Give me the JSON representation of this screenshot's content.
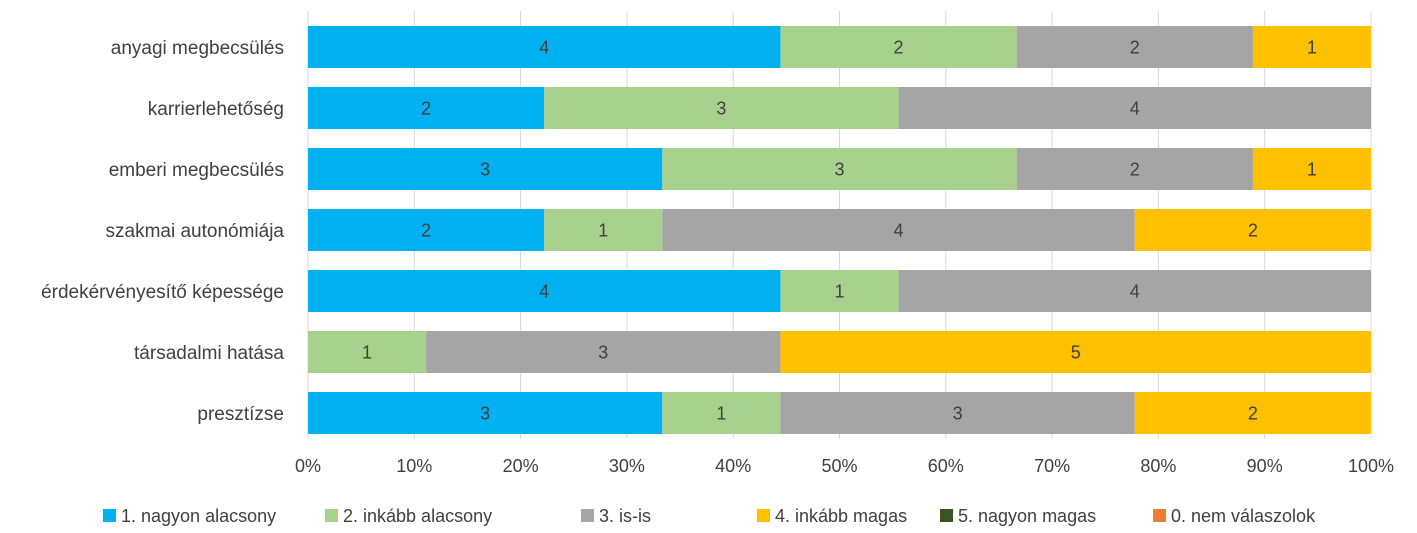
{
  "chart_data": {
    "type": "bar",
    "orientation": "horizontal",
    "stacked": "percent",
    "categories": [
      "anyagi megbecsülés",
      "karrierlehetőség",
      "emberi megbecsülés",
      "szakmai autonómiája",
      "érdekérvényesítő képessége",
      "társadalmi hatása",
      "presztízse"
    ],
    "series": [
      {
        "name": "1. nagyon alacsony",
        "color": "#00B0F0",
        "values": [
          4,
          2,
          3,
          2,
          4,
          0,
          3
        ]
      },
      {
        "name": "2. inkább alacsony",
        "color": "#A9D18E",
        "values": [
          2,
          3,
          3,
          1,
          1,
          1,
          1
        ]
      },
      {
        "name": "3. is-is",
        "color": "#A5A5A5",
        "values": [
          2,
          4,
          2,
          4,
          4,
          3,
          3
        ]
      },
      {
        "name": "4. inkább magas",
        "color": "#FFC000",
        "values": [
          1,
          0,
          1,
          2,
          0,
          5,
          2
        ]
      },
      {
        "name": "5. nagyon magas",
        "color": "#375623",
        "values": [
          0,
          0,
          0,
          0,
          0,
          0,
          0
        ]
      },
      {
        "name": "0. nem válaszolok",
        "color": "#ED7D31",
        "values": [
          0,
          0,
          0,
          0,
          0,
          0,
          0
        ]
      }
    ],
    "x_ticks": [
      "0%",
      "10%",
      "20%",
      "30%",
      "40%",
      "50%",
      "60%",
      "70%",
      "80%",
      "90%",
      "100%"
    ],
    "xlim": [
      0,
      100
    ],
    "grid": true,
    "legend": "bottom",
    "data_labels": true
  }
}
